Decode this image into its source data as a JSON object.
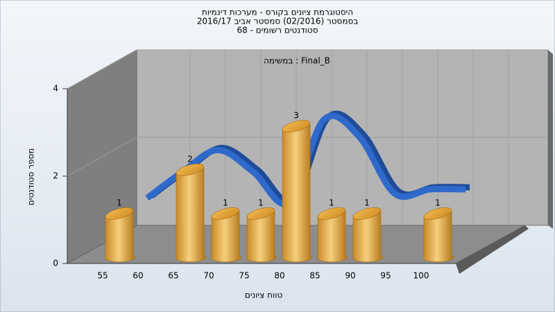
{
  "chart_data": {
    "type": "bar",
    "title": [
      "היסטוגרמת ציונים בקורס - מערכות דינמיות",
      "בסמסטר  (02/2016)  סמסטר אביב 2016/17",
      "סטודנטים רשומים - 68"
    ],
    "subtitle": "במשימה : Final_B",
    "x_label": "טווח ציונים",
    "y_label": "מספר סטודנטים",
    "categories": [
      "55",
      "60",
      "65",
      "70",
      "75",
      "80",
      "85",
      "90",
      "95",
      "100"
    ],
    "values": [
      1,
      0,
      2,
      1,
      1,
      3,
      1,
      1,
      0,
      1
    ],
    "color": "#e0a040",
    "curve": {
      "color": "#2f6acb",
      "values": [
        1.1,
        1.7,
        2.2,
        1.7,
        1.0,
        2.9,
        2.5,
        1.2,
        1.3,
        1.3
      ]
    },
    "ylim": [
      0,
      4
    ],
    "yticks": [
      0,
      2,
      4
    ],
    "grid": true
  }
}
